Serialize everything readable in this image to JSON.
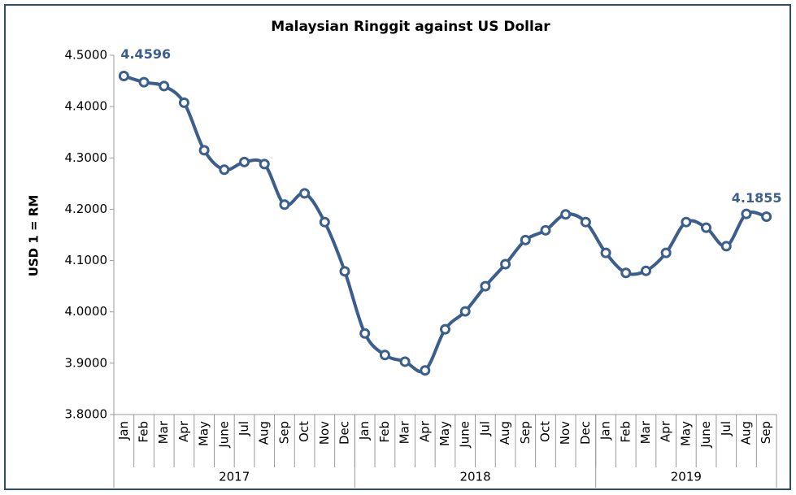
{
  "chart_data": {
    "type": "line",
    "title": "Malaysian Ringgit against US Dollar",
    "y_label": "USD 1 = RM",
    "category_groups": [
      {
        "label": "2017",
        "categories": [
          "Jan",
          "Feb",
          "Mar",
          "Apr",
          "May",
          "June",
          "Jul",
          "Aug",
          "Sep",
          "Oct",
          "Nov",
          "Dec"
        ]
      },
      {
        "label": "2018",
        "categories": [
          "Jan",
          "Feb",
          "Mar",
          "Apr",
          "May",
          "June",
          "Jul",
          "Aug",
          "Sep",
          "Oct",
          "Nov",
          "Dec"
        ]
      },
      {
        "label": "2019",
        "categories": [
          "Jan",
          "Feb",
          "Mar",
          "Apr",
          "May",
          "June",
          "Jul",
          "Aug",
          "Sep"
        ]
      }
    ],
    "values": [
      4.4596,
      4.4475,
      4.44,
      4.4075,
      4.315,
      4.277,
      4.292,
      4.288,
      4.209,
      4.231,
      4.175,
      4.079,
      3.958,
      3.916,
      3.903,
      3.886,
      3.966,
      4.001,
      4.05,
      4.093,
      4.14,
      4.159,
      4.19,
      4.175,
      4.115,
      4.076,
      4.08,
      4.115,
      4.175,
      4.164,
      4.128,
      4.191,
      4.1855
    ],
    "value_labels": [
      "4.4596",
      null,
      null,
      null,
      null,
      null,
      null,
      null,
      null,
      null,
      null,
      null,
      null,
      null,
      null,
      null,
      null,
      null,
      null,
      null,
      null,
      null,
      null,
      null,
      null,
      null,
      null,
      null,
      null,
      null,
      null,
      null,
      "4.1855"
    ],
    "color": "#3b5e8c",
    "ylim": [
      3.8,
      4.5
    ],
    "yticks": [
      {
        "value": 3.8,
        "label": "3.8000"
      },
      {
        "value": 3.9,
        "label": "3.9000"
      },
      {
        "value": 4.0,
        "label": "4.0000"
      },
      {
        "value": 4.1,
        "label": "4.1000"
      },
      {
        "value": 4.2,
        "label": "4.2000"
      },
      {
        "value": 4.3,
        "label": "4.3000"
      },
      {
        "value": 4.4,
        "label": "4.4000"
      },
      {
        "value": 4.5,
        "label": "4.5000"
      }
    ],
    "grid": false
  }
}
